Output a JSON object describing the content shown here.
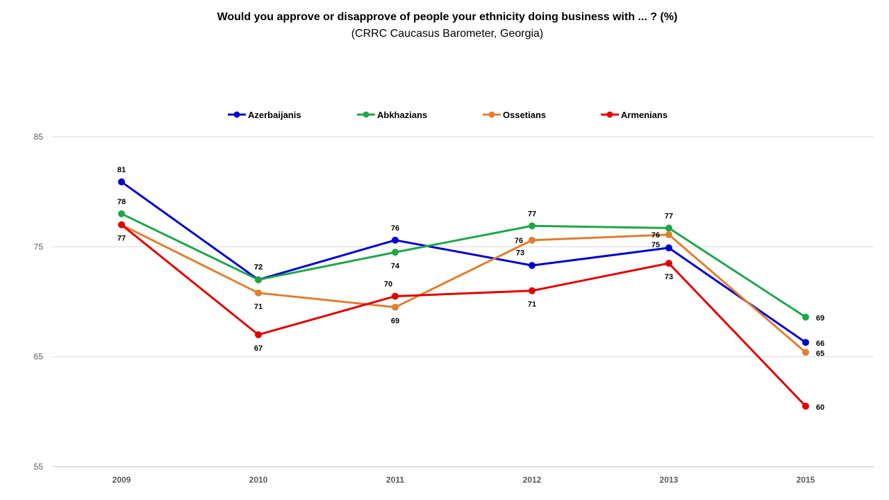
{
  "chart_data": {
    "type": "line",
    "title": "Would you approve or disapprove of people your ethnicity doing business with ... ? (%)",
    "subtitle": "(CRRC Caucasus Barometer, Georgia)",
    "categories": [
      "2009",
      "2010",
      "2011",
      "2012",
      "2013",
      "2015"
    ],
    "ylim": [
      55,
      85
    ],
    "yticks": [
      55,
      65,
      75,
      85
    ],
    "grid": true,
    "legend_position": "top",
    "series": [
      {
        "name": "Azerbaijanis",
        "color": "#0000CC",
        "values": [
          80.9,
          72.0,
          75.6,
          73.3,
          74.9,
          66.3
        ],
        "labels": [
          "81",
          "72",
          "76",
          "73",
          "75",
          "66"
        ]
      },
      {
        "name": "Abkhazians",
        "color": "#1FA64A",
        "values": [
          78.0,
          72.0,
          74.5,
          76.9,
          76.7,
          68.6
        ],
        "labels": [
          "78",
          "72",
          "74",
          "77",
          "77",
          "69"
        ]
      },
      {
        "name": "Ossetians",
        "color": "#E07E30",
        "values": [
          77.0,
          70.8,
          69.5,
          75.6,
          76.1,
          65.4
        ],
        "labels": [
          "77",
          "71",
          "69",
          "76",
          "76",
          "65"
        ]
      },
      {
        "name": "Armenians",
        "color": "#E00000",
        "values": [
          77.0,
          67.0,
          70.5,
          71.0,
          73.5,
          60.5
        ],
        "labels": [
          "77",
          "67",
          "70",
          "71",
          "73",
          "60"
        ]
      }
    ]
  }
}
